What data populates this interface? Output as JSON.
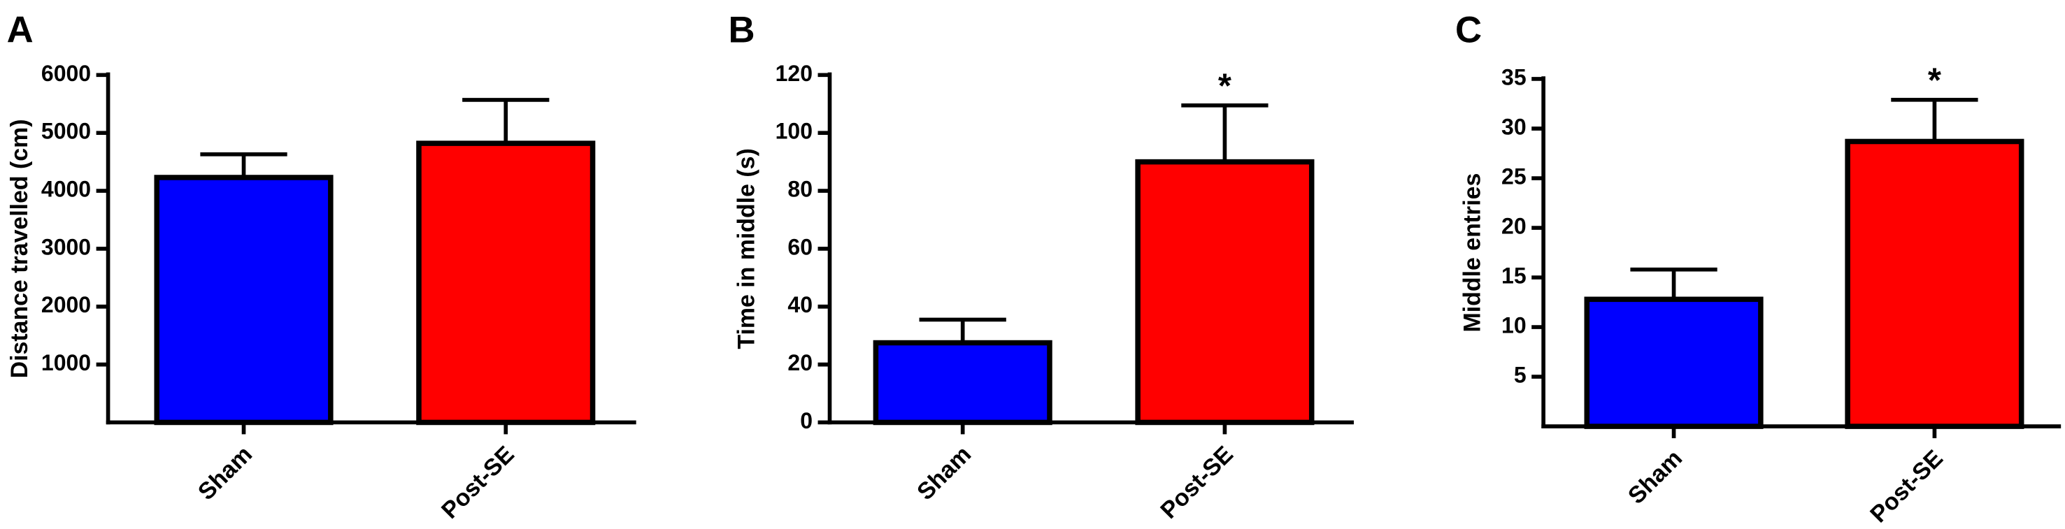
{
  "chart_data": [
    {
      "type": "bar",
      "panel_label": "A",
      "ylabel": "Distance travelled  (cm)",
      "categories": [
        "Sham",
        "Post-SE"
      ],
      "values": [
        4230,
        4820
      ],
      "errors": [
        400,
        750
      ],
      "colors": [
        "#0000ff",
        "#ff0000"
      ],
      "ylim": [
        0,
        6000
      ],
      "yticks": [
        1000,
        2000,
        3000,
        4000,
        5000,
        6000
      ]
    },
    {
      "type": "bar",
      "panel_label": "B",
      "ylabel": "Time in middle (s)",
      "categories": [
        "Sham",
        "Post-SE"
      ],
      "values": [
        27.5,
        90
      ],
      "errors": [
        8,
        19.5
      ],
      "colors": [
        "#0000ff",
        "#ff0000"
      ],
      "ylim": [
        0,
        120
      ],
      "yticks": [
        0,
        20,
        40,
        60,
        80,
        100,
        120
      ],
      "annotations": [
        {
          "text": "*",
          "category": "Post-SE"
        }
      ]
    },
    {
      "type": "bar",
      "panel_label": "C",
      "ylabel": "Middle entries",
      "categories": [
        "Sham",
        "Post-SE"
      ],
      "values": [
        12.8,
        28.7
      ],
      "errors": [
        3,
        4.2
      ],
      "colors": [
        "#0000ff",
        "#ff0000"
      ],
      "ylim": [
        0,
        35
      ],
      "yticks": [
        5,
        10,
        15,
        20,
        25,
        30,
        35
      ],
      "annotations": [
        {
          "text": "*",
          "category": "Post-SE"
        }
      ]
    }
  ]
}
